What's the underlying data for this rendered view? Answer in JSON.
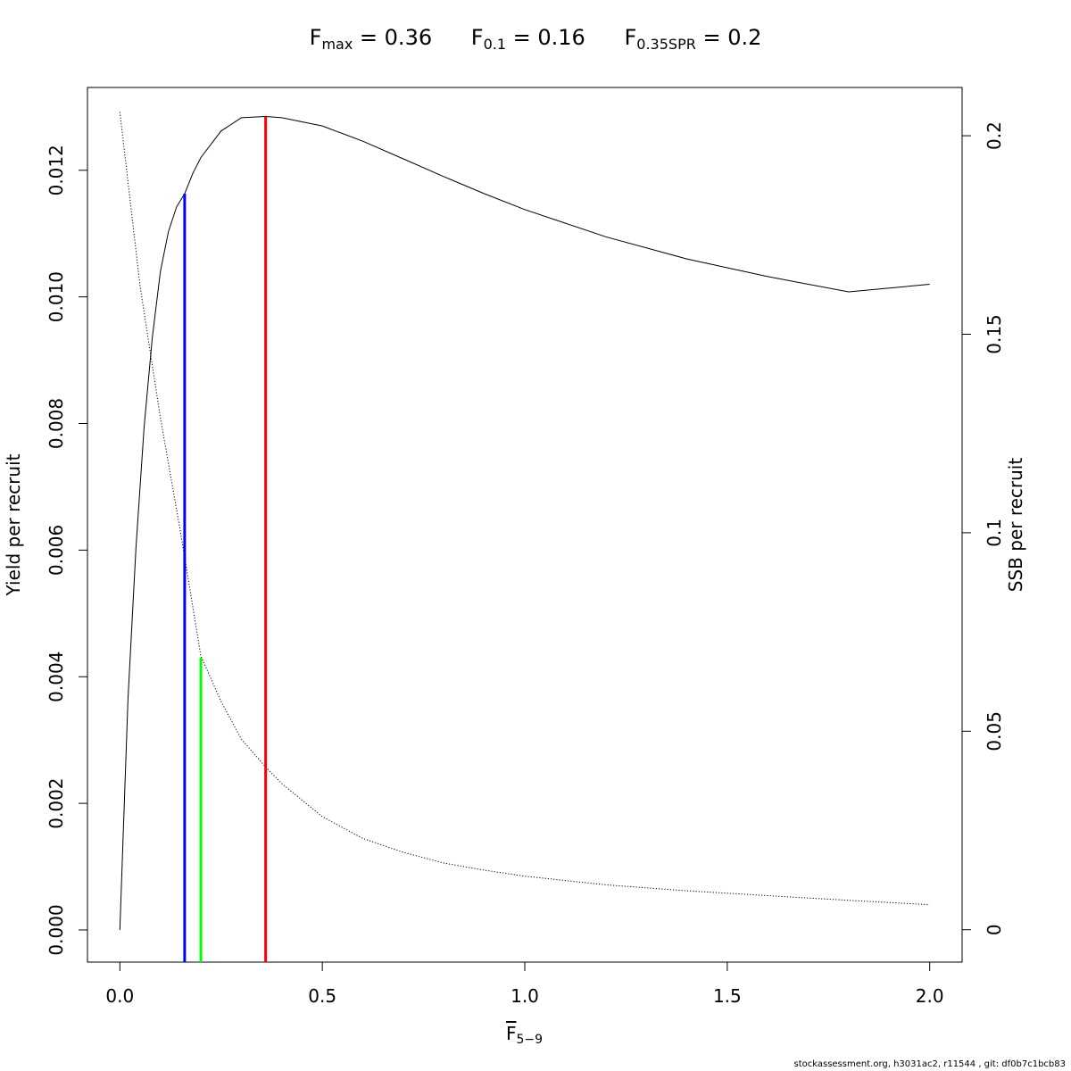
{
  "title": {
    "fmax": {
      "symbol": "F",
      "sub": "max",
      "text": " = 0.36"
    },
    "f01": {
      "symbol": "F",
      "sub": "0.1",
      "text": " = 0.16"
    },
    "fspr": {
      "symbol": "F",
      "sub": "0.35SPR",
      "text": " = 0.2"
    }
  },
  "footer": "stockassessment.org, h3031ac2, r11544 , git: df0b7c1bcb83",
  "chart_data": {
    "type": "line",
    "xlabel": {
      "symbol": "F",
      "sub": "5−9"
    },
    "ylabel": "Yield per recruit",
    "y2label": "SSB per recruit",
    "xlim": [
      -0.08,
      2.08
    ],
    "ylim": [
      -0.000508,
      0.013308
    ],
    "y2lim": [
      -0.00816,
      0.21216
    ],
    "x_ticks": [
      {
        "value": 0.0,
        "label": "0.0"
      },
      {
        "value": 0.5,
        "label": "0.5"
      },
      {
        "value": 1.0,
        "label": "1.0"
      },
      {
        "value": 1.5,
        "label": "1.5"
      },
      {
        "value": 2.0,
        "label": "2.0"
      }
    ],
    "y_ticks": [
      {
        "value": 0.0,
        "label": "0.000"
      },
      {
        "value": 0.002,
        "label": "0.002"
      },
      {
        "value": 0.004,
        "label": "0.004"
      },
      {
        "value": 0.006,
        "label": "0.006"
      },
      {
        "value": 0.008,
        "label": "0.008"
      },
      {
        "value": 0.01,
        "label": "0.010"
      },
      {
        "value": 0.012,
        "label": "0.012"
      }
    ],
    "y2_ticks": [
      {
        "value": 0.0,
        "label": "0"
      },
      {
        "value": 0.05,
        "label": "0.05"
      },
      {
        "value": 0.1,
        "label": "0.1"
      },
      {
        "value": 0.15,
        "label": "0.15"
      },
      {
        "value": 0.2,
        "label": "0.2"
      }
    ],
    "series": [
      {
        "axis": "left",
        "style": "solid",
        "color": "#000000",
        "x": [
          0,
          0.02,
          0.04,
          0.06,
          0.08,
          0.1,
          0.12,
          0.14,
          0.16,
          0.18,
          0.2,
          0.25,
          0.3,
          0.36,
          0.4,
          0.5,
          0.6,
          0.7,
          0.8,
          0.9,
          1.0,
          1.2,
          1.4,
          1.6,
          1.8,
          2.0
        ],
        "y": [
          0,
          0.00365,
          0.00605,
          0.00795,
          0.00935,
          0.0104,
          0.01103,
          0.01142,
          0.01163,
          0.01195,
          0.0122,
          0.01262,
          0.01283,
          0.01285,
          0.01283,
          0.0127,
          0.01246,
          0.01218,
          0.0119,
          0.01163,
          0.01138,
          0.01095,
          0.0106,
          0.01032,
          0.01008,
          0.0102
        ]
      },
      {
        "axis": "right",
        "style": "dotted",
        "color": "#000000",
        "x": [
          0,
          0.05,
          0.1,
          0.15,
          0.2,
          0.25,
          0.3,
          0.36,
          0.4,
          0.5,
          0.6,
          0.7,
          0.8,
          0.9,
          1.0,
          1.2,
          1.4,
          1.6,
          1.8,
          2.0
        ],
        "y": [
          0.206,
          0.162,
          0.129,
          0.1,
          0.069,
          0.0575,
          0.048,
          0.041,
          0.0368,
          0.0285,
          0.023,
          0.0195,
          0.0168,
          0.015,
          0.0135,
          0.0113,
          0.0098,
          0.0086,
          0.0074,
          0.0063
        ]
      }
    ],
    "reference_lines": [
      {
        "name": "F0.1",
        "x": 0.16,
        "y_top": 0.01163,
        "color": "#0000ff"
      },
      {
        "name": "F0.35SPR",
        "x": 0.2,
        "y_top": 0.0043,
        "color": "#00ff00"
      },
      {
        "name": "Fmax",
        "x": 0.36,
        "y_top": 0.01285,
        "color": "#ff0000"
      }
    ]
  }
}
